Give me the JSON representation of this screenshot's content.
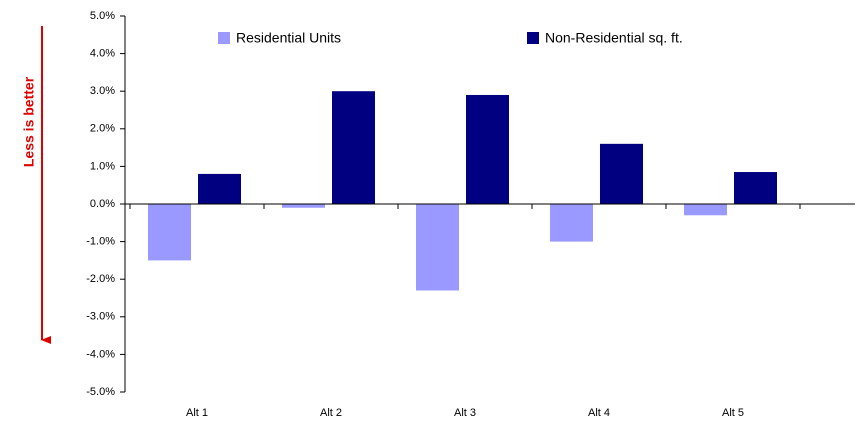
{
  "chart_data": {
    "type": "bar",
    "annotation": "Less is better",
    "categories": [
      "Alt 1",
      "Alt 2",
      "Alt 3",
      "Alt 4",
      "Alt 5"
    ],
    "series": [
      {
        "name": "Residential Units",
        "color": "#9999ff",
        "values": [
          -1.5,
          -0.1,
          -2.3,
          -1.0,
          -0.3
        ]
      },
      {
        "name": "Non-Residential sq. ft.",
        "color": "#000080",
        "values": [
          0.8,
          3.0,
          2.9,
          1.6,
          0.85
        ]
      }
    ],
    "ylim": [
      -5,
      5
    ],
    "yticks": [
      {
        "value": -5,
        "label": "-5.0%"
      },
      {
        "value": -4,
        "label": "-4.0%"
      },
      {
        "value": -3,
        "label": "-3.0%"
      },
      {
        "value": -2,
        "label": "-2.0%"
      },
      {
        "value": -1,
        "label": "-1.0%"
      },
      {
        "value": 0,
        "label": "0.0%"
      },
      {
        "value": 1,
        "label": "1.0%"
      },
      {
        "value": 2,
        "label": "2.0%"
      },
      {
        "value": 3,
        "label": "3.0%"
      },
      {
        "value": 4,
        "label": "4.0%"
      },
      {
        "value": 5,
        "label": "5.0%"
      }
    ],
    "grid": false,
    "legend": "top"
  }
}
